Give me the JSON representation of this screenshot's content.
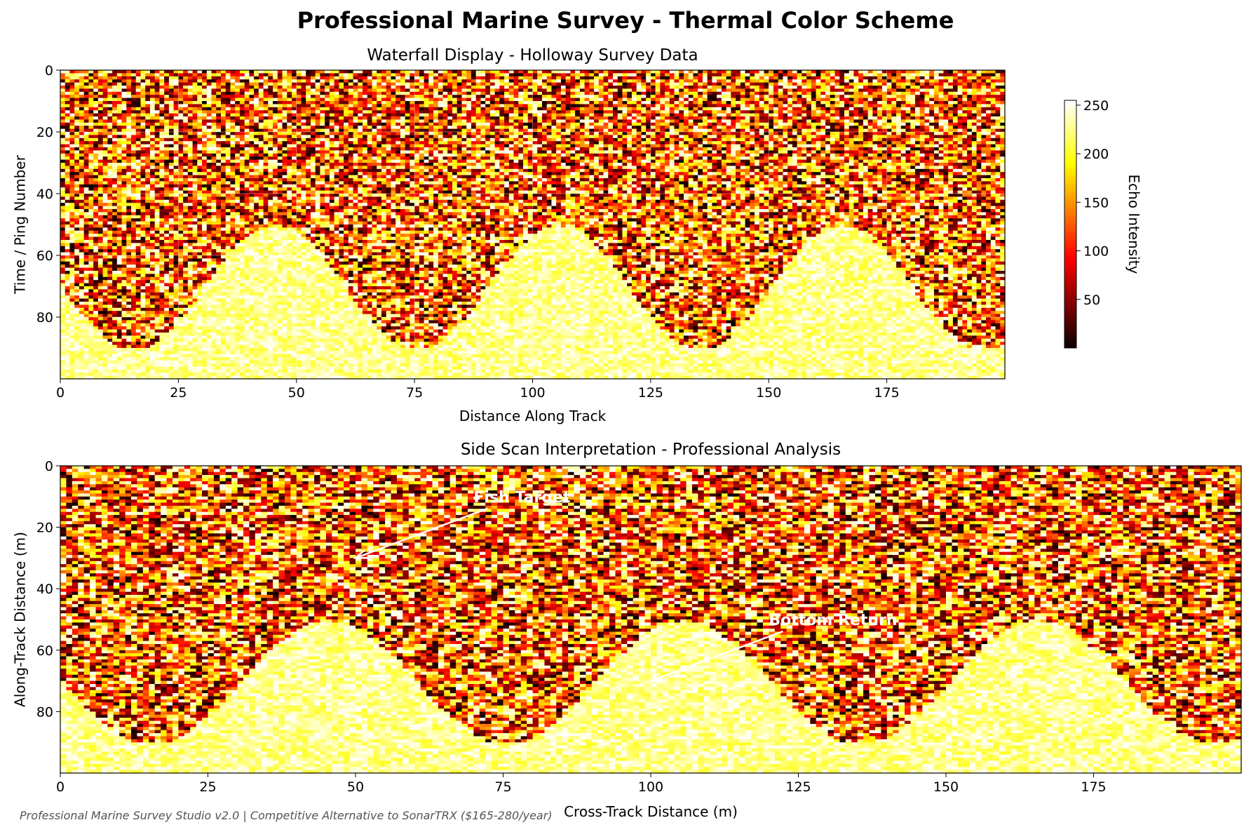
{
  "figure": {
    "title": "Professional Marine Survey - Thermal Color Scheme",
    "footer": "Professional Marine Survey Studio v2.0 | Competitive Alternative to SonarTRX ($165-280/year)"
  },
  "chart_data": [
    {
      "type": "heatmap",
      "title": "Waterfall Display - Holloway Survey Data",
      "xlabel": "Distance Along Track",
      "ylabel": "Time / Ping Number",
      "xlim": [
        0,
        200
      ],
      "ylim": [
        100,
        0
      ],
      "xticks": [
        0,
        25,
        50,
        75,
        100,
        125,
        150,
        175
      ],
      "yticks": [
        0,
        20,
        40,
        60,
        80
      ],
      "grid": true,
      "colormap": "hot",
      "clim": [
        0,
        255
      ],
      "grid_size": [
        100,
        200
      ],
      "bottom_profile": {
        "description_of_boundary": "sinusoidal seabed boundary",
        "y_mean": 70,
        "amplitude": 20,
        "period": 60,
        "y_min": 50,
        "y_max": 90
      },
      "colorbar": {
        "label": "Echo Intensity",
        "ticks": [
          50,
          100,
          150,
          200,
          250
        ],
        "range": [
          0,
          255
        ]
      }
    },
    {
      "type": "heatmap",
      "title": "Side Scan Interpretation - Professional Analysis",
      "xlabel": "Cross-Track Distance (m)",
      "ylabel": "Along-Track Distance (m)",
      "xlim": [
        0,
        200
      ],
      "ylim": [
        100,
        0
      ],
      "xticks": [
        0,
        25,
        50,
        75,
        100,
        125,
        150,
        175
      ],
      "yticks": [
        0,
        20,
        40,
        60,
        80
      ],
      "grid": false,
      "colormap": "hot",
      "clim": [
        0,
        255
      ],
      "grid_size": [
        100,
        200
      ],
      "bottom_profile": {
        "y_mean": 70,
        "amplitude": 20,
        "period": 60,
        "y_min": 50,
        "y_max": 90
      },
      "annotations": [
        {
          "text": "Fish Target",
          "xy": [
            50,
            30
          ],
          "xytext": [
            70,
            10
          ]
        },
        {
          "text": "Bottom Return",
          "xy": [
            100,
            70
          ],
          "xytext": [
            120,
            50
          ]
        }
      ]
    }
  ]
}
